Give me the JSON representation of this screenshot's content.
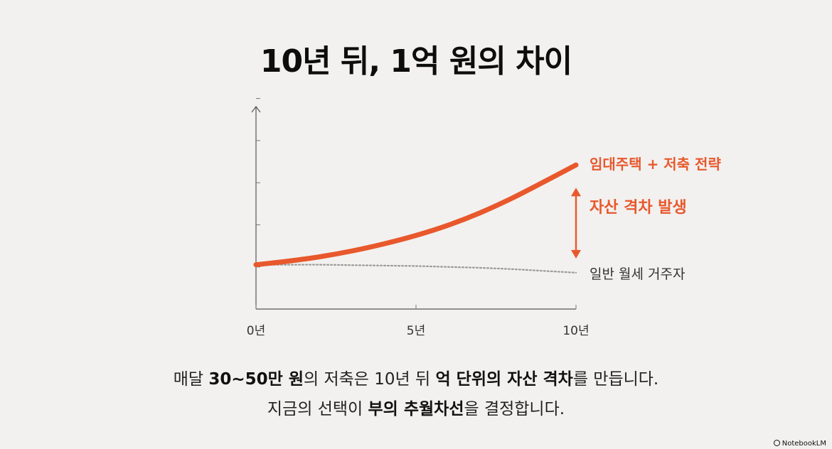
{
  "title": "10년 뒤, 1억 원의 차이",
  "chart_data": {
    "type": "line",
    "x": [
      0,
      1,
      2,
      3,
      4,
      5,
      6,
      7,
      8,
      9,
      10
    ],
    "x_unit": "년",
    "tick_labels": [
      "0년",
      "5년",
      "10년"
    ],
    "tick_values": [
      0,
      5,
      10
    ],
    "y_tick_count": 5,
    "ylim": [
      0,
      5
    ],
    "series": [
      {
        "name": "임대주택 + 저축 전략",
        "values": [
          1.0,
          1.08,
          1.18,
          1.31,
          1.47,
          1.66,
          1.89,
          2.17,
          2.5,
          2.87,
          3.25
        ],
        "color": "#e8582c",
        "style": "solid"
      },
      {
        "name": "일반 월세 거주자",
        "values": [
          1.0,
          1.0,
          1.0,
          0.99,
          0.98,
          0.97,
          0.95,
          0.93,
          0.9,
          0.86,
          0.82
        ],
        "color": "#9a9a9a",
        "style": "dotted"
      }
    ],
    "annotation": "자산 격차 발생",
    "accent_color": "#e8582c",
    "grid": false
  },
  "caption": {
    "line1": {
      "a": "매달 ",
      "b": "30~50만 원",
      "c": "의 저축은 10년 뒤 ",
      "d": "억 단위의 자산 격차",
      "e": "를 만듭니다."
    },
    "line2": {
      "a": "지금의 선택이 ",
      "b": "부의 추월차선",
      "c": "을 결정합니다."
    }
  },
  "brand": "NotebookLM"
}
